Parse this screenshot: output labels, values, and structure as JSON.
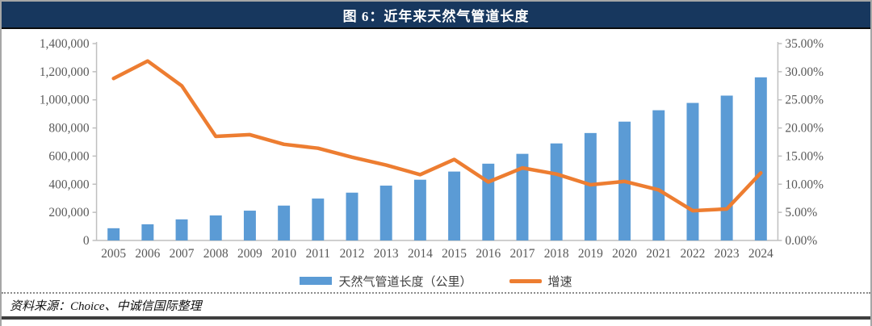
{
  "figure": {
    "title": "图 6：近年来天然气管道长度",
    "source": "资料来源：Choice、中诚信国际整理"
  },
  "colors": {
    "title_bar_bg": "#17375E",
    "title_text": "#FFFFFF",
    "bar": "#5B9BD5",
    "line": "#ED7D31",
    "axis_text": "#595959",
    "axis_line": "#BFBFBF",
    "frame_border": "#A6A6A6",
    "bottom_bar": "#3F3F3F"
  },
  "chart_data": {
    "type": "combo: bar + line (dual y-axes)",
    "title": "图 6：近年来天然气管道长度",
    "categories": [
      "2005",
      "2006",
      "2007",
      "2008",
      "2009",
      "2010",
      "2011",
      "2012",
      "2013",
      "2014",
      "2015",
      "2016",
      "2017",
      "2018",
      "2019",
      "2020",
      "2021",
      "2022",
      "2023",
      "2024"
    ],
    "series": [
      {
        "name": "天然气管道长度（公里）",
        "type": "bar",
        "axis": "left",
        "color": "#5B9BD5",
        "values": [
          87000,
          115000,
          150000,
          178000,
          212000,
          248000,
          298000,
          340000,
          390000,
          432000,
          490000,
          546000,
          616000,
          690000,
          764000,
          845000,
          926000,
          978000,
          1030000,
          1160000
        ]
      },
      {
        "name": "增速",
        "type": "line",
        "axis": "right",
        "unit": "%",
        "color": "#ED7D31",
        "values": [
          28.8,
          31.9,
          27.5,
          18.5,
          18.8,
          17.1,
          16.4,
          14.8,
          13.4,
          11.7,
          14.4,
          10.4,
          12.9,
          11.8,
          9.9,
          10.5,
          9.0,
          5.3,
          5.6,
          12.0
        ]
      }
    ],
    "left_axis": {
      "min": 0,
      "max": 1400000,
      "tick_labels": [
        "1,400,000",
        "1,200,000",
        "1,000,000",
        "800,000",
        "600,000",
        "400,000",
        "200,000",
        "0"
      ]
    },
    "right_axis": {
      "min": 0,
      "max": 35,
      "tick_labels": [
        "35.00%",
        "30.00%",
        "25.00%",
        "20.00%",
        "15.00%",
        "10.00%",
        "5.00%",
        "0.00%"
      ]
    },
    "grid": false,
    "legend_position": "bottom"
  }
}
